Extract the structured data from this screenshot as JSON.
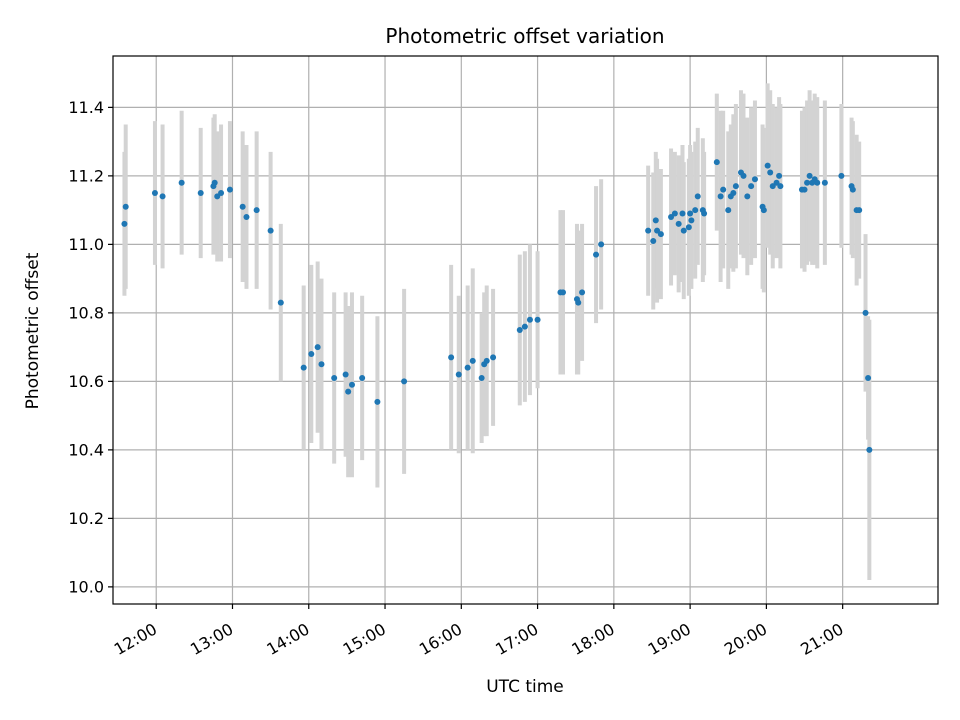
{
  "chart_data": {
    "type": "scatter",
    "title": "Photometric offset variation",
    "xlabel": "UTC time",
    "ylabel": "Photometric offset",
    "xlim": [
      "11:26",
      "22:15"
    ],
    "ylim": [
      9.95,
      11.55
    ],
    "x_ticks": [
      "12:00",
      "13:00",
      "14:00",
      "15:00",
      "16:00",
      "17:00",
      "18:00",
      "19:00",
      "20:00",
      "21:00"
    ],
    "y_ticks": [
      "10.0",
      "10.2",
      "10.4",
      "10.6",
      "10.8",
      "11.0",
      "11.2",
      "11.4"
    ],
    "grid": true,
    "colors": {
      "points": "#1f77b4",
      "errorbars": "#d3d3d3",
      "grid": "#b0b0b0"
    },
    "series": [
      {
        "points": [
          {
            "t": "11:35",
            "y": 11.06,
            "err": 0.21
          },
          {
            "t": "11:36",
            "y": 11.11,
            "err": 0.24
          },
          {
            "t": "11:59",
            "y": 11.15,
            "err": 0.21
          },
          {
            "t": "12:05",
            "y": 11.14,
            "err": 0.21
          },
          {
            "t": "12:20",
            "y": 11.18,
            "err": 0.21
          },
          {
            "t": "12:35",
            "y": 11.15,
            "err": 0.19
          },
          {
            "t": "12:45",
            "y": 11.17,
            "err": 0.2
          },
          {
            "t": "12:46",
            "y": 11.18,
            "err": 0.2
          },
          {
            "t": "12:48",
            "y": 11.14,
            "err": 0.19
          },
          {
            "t": "12:51",
            "y": 11.15,
            "err": 0.2
          },
          {
            "t": "12:58",
            "y": 11.16,
            "err": 0.2
          },
          {
            "t": "13:08",
            "y": 11.11,
            "err": 0.22
          },
          {
            "t": "13:11",
            "y": 11.08,
            "err": 0.21
          },
          {
            "t": "13:19",
            "y": 11.1,
            "err": 0.23
          },
          {
            "t": "13:30",
            "y": 11.04,
            "err": 0.23
          },
          {
            "t": "13:38",
            "y": 10.83,
            "err": 0.23
          },
          {
            "t": "13:56",
            "y": 10.64,
            "err": 0.24
          },
          {
            "t": "14:02",
            "y": 10.68,
            "err": 0.26
          },
          {
            "t": "14:07",
            "y": 10.7,
            "err": 0.25
          },
          {
            "t": "14:10",
            "y": 10.65,
            "err": 0.25
          },
          {
            "t": "14:20",
            "y": 10.61,
            "err": 0.25
          },
          {
            "t": "14:29",
            "y": 10.62,
            "err": 0.24
          },
          {
            "t": "14:31",
            "y": 10.57,
            "err": 0.25
          },
          {
            "t": "14:34",
            "y": 10.59,
            "err": 0.27
          },
          {
            "t": "14:42",
            "y": 10.61,
            "err": 0.24
          },
          {
            "t": "14:54",
            "y": 10.54,
            "err": 0.25
          },
          {
            "t": "15:15",
            "y": 10.6,
            "err": 0.27
          },
          {
            "t": "15:52",
            "y": 10.67,
            "err": 0.27
          },
          {
            "t": "15:58",
            "y": 10.62,
            "err": 0.23
          },
          {
            "t": "16:05",
            "y": 10.64,
            "err": 0.24
          },
          {
            "t": "16:09",
            "y": 10.66,
            "err": 0.27
          },
          {
            "t": "16:16",
            "y": 10.61,
            "err": 0.19
          },
          {
            "t": "16:18",
            "y": 10.65,
            "err": 0.21
          },
          {
            "t": "16:20",
            "y": 10.66,
            "err": 0.22
          },
          {
            "t": "16:25",
            "y": 10.67,
            "err": 0.2
          },
          {
            "t": "16:46",
            "y": 10.75,
            "err": 0.22
          },
          {
            "t": "16:50",
            "y": 10.76,
            "err": 0.22
          },
          {
            "t": "16:54",
            "y": 10.78,
            "err": 0.22
          },
          {
            "t": "17:00",
            "y": 10.78,
            "err": 0.2
          },
          {
            "t": "17:18",
            "y": 10.86,
            "err": 0.24
          },
          {
            "t": "17:20",
            "y": 10.86,
            "err": 0.24
          },
          {
            "t": "17:31",
            "y": 10.84,
            "err": 0.22
          },
          {
            "t": "17:32",
            "y": 10.83,
            "err": 0.21
          },
          {
            "t": "17:35",
            "y": 10.86,
            "err": 0.2
          },
          {
            "t": "17:46",
            "y": 10.97,
            "err": 0.2
          },
          {
            "t": "17:50",
            "y": 11.0,
            "err": 0.19
          },
          {
            "t": "18:27",
            "y": 11.04,
            "err": 0.19
          },
          {
            "t": "18:31",
            "y": 11.01,
            "err": 0.2
          },
          {
            "t": "18:33",
            "y": 11.07,
            "err": 0.2
          },
          {
            "t": "18:34",
            "y": 11.04,
            "err": 0.21
          },
          {
            "t": "18:37",
            "y": 11.03,
            "err": 0.19
          },
          {
            "t": "18:45",
            "y": 11.08,
            "err": 0.2
          },
          {
            "t": "18:48",
            "y": 11.09,
            "err": 0.18
          },
          {
            "t": "18:51",
            "y": 11.06,
            "err": 0.2
          },
          {
            "t": "18:54",
            "y": 11.09,
            "err": 0.2
          },
          {
            "t": "18:55",
            "y": 11.04,
            "err": 0.2
          },
          {
            "t": "18:59",
            "y": 11.05,
            "err": 0.2
          },
          {
            "t": "19:00",
            "y": 11.09,
            "err": 0.2
          },
          {
            "t": "19:01",
            "y": 11.07,
            "err": 0.2
          },
          {
            "t": "19:04",
            "y": 11.1,
            "err": 0.2
          },
          {
            "t": "19:06",
            "y": 11.14,
            "err": 0.2
          },
          {
            "t": "19:10",
            "y": 11.1,
            "err": 0.21
          },
          {
            "t": "19:11",
            "y": 11.09,
            "err": 0.18
          },
          {
            "t": "19:21",
            "y": 11.24,
            "err": 0.2
          },
          {
            "t": "19:24",
            "y": 11.14,
            "err": 0.25
          },
          {
            "t": "19:26",
            "y": 11.16,
            "err": 0.23
          },
          {
            "t": "19:30",
            "y": 11.1,
            "err": 0.23
          },
          {
            "t": "19:32",
            "y": 11.14,
            "err": 0.21
          },
          {
            "t": "19:34",
            "y": 11.15,
            "err": 0.23
          },
          {
            "t": "19:36",
            "y": 11.17,
            "err": 0.24
          },
          {
            "t": "19:40",
            "y": 11.21,
            "err": 0.24
          },
          {
            "t": "19:42",
            "y": 11.2,
            "err": 0.24
          },
          {
            "t": "19:45",
            "y": 11.14,
            "err": 0.23
          },
          {
            "t": "19:48",
            "y": 11.17,
            "err": 0.23
          },
          {
            "t": "19:51",
            "y": 11.19,
            "err": 0.23
          },
          {
            "t": "19:57",
            "y": 11.11,
            "err": 0.24
          },
          {
            "t": "19:58",
            "y": 11.1,
            "err": 0.24
          },
          {
            "t": "20:01",
            "y": 11.23,
            "err": 0.24
          },
          {
            "t": "20:03",
            "y": 11.21,
            "err": 0.24
          },
          {
            "t": "20:05",
            "y": 11.17,
            "err": 0.24
          },
          {
            "t": "20:08",
            "y": 11.18,
            "err": 0.22
          },
          {
            "t": "20:10",
            "y": 11.2,
            "err": 0.23
          },
          {
            "t": "20:11",
            "y": 11.17,
            "err": 0.24
          },
          {
            "t": "20:28",
            "y": 11.16,
            "err": 0.23
          },
          {
            "t": "20:30",
            "y": 11.16,
            "err": 0.24
          },
          {
            "t": "20:32",
            "y": 11.18,
            "err": 0.24
          },
          {
            "t": "20:34",
            "y": 11.2,
            "err": 0.25
          },
          {
            "t": "20:36",
            "y": 11.18,
            "err": 0.24
          },
          {
            "t": "20:38",
            "y": 11.19,
            "err": 0.25
          },
          {
            "t": "20:40",
            "y": 11.18,
            "err": 0.25
          },
          {
            "t": "20:46",
            "y": 11.18,
            "err": 0.24
          },
          {
            "t": "20:59",
            "y": 11.2,
            "err": 0.21
          },
          {
            "t": "21:07",
            "y": 11.17,
            "err": 0.2
          },
          {
            "t": "21:08",
            "y": 11.16,
            "err": 0.2
          },
          {
            "t": "21:11",
            "y": 11.1,
            "err": 0.22
          },
          {
            "t": "21:13",
            "y": 11.1,
            "err": 0.2
          },
          {
            "t": "21:18",
            "y": 10.8,
            "err": 0.23
          },
          {
            "t": "21:20",
            "y": 10.61,
            "err": 0.18
          },
          {
            "t": "21:21",
            "y": 10.4,
            "err": 0.38
          }
        ]
      }
    ]
  }
}
